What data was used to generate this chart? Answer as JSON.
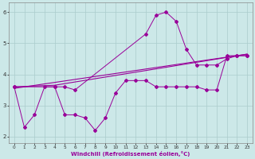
{
  "xlabel": "Windchill (Refroidissement éolien,°C)",
  "bg_color": "#cce8e8",
  "line_color": "#990099",
  "grid_color": "#aacccc",
  "xlim": [
    -0.5,
    23.5
  ],
  "ylim": [
    1.8,
    6.3
  ],
  "xticks": [
    0,
    1,
    2,
    3,
    4,
    5,
    6,
    7,
    8,
    9,
    10,
    11,
    12,
    13,
    14,
    15,
    16,
    17,
    18,
    19,
    20,
    21,
    22,
    23
  ],
  "yticks": [
    2,
    3,
    4,
    5,
    6
  ],
  "series1_x": [
    0,
    1,
    2,
    3,
    4,
    5,
    6,
    7,
    8,
    9,
    10,
    11,
    12,
    13,
    14,
    15,
    16,
    17,
    18,
    19,
    20,
    21,
    22,
    23
  ],
  "series1_y": [
    3.6,
    2.3,
    2.7,
    3.6,
    3.6,
    2.7,
    2.7,
    2.6,
    2.2,
    2.6,
    3.4,
    3.8,
    3.8,
    3.8,
    3.6,
    3.6,
    3.6,
    3.6,
    3.6,
    3.5,
    3.5,
    4.6,
    4.6,
    4.6
  ],
  "series2_x": [
    0,
    4,
    5,
    6,
    13,
    14,
    15,
    16,
    17,
    18,
    19,
    20,
    21,
    22,
    23
  ],
  "series2_y": [
    3.6,
    3.6,
    3.6,
    3.5,
    5.3,
    5.9,
    6.0,
    5.7,
    4.8,
    4.3,
    4.3,
    4.3,
    4.5,
    4.6,
    4.6
  ],
  "series3_x": [
    0,
    23
  ],
  "series3_y": [
    3.55,
    4.65
  ],
  "series4_x": [
    0,
    4,
    23
  ],
  "series4_y": [
    3.6,
    3.65,
    4.65
  ]
}
